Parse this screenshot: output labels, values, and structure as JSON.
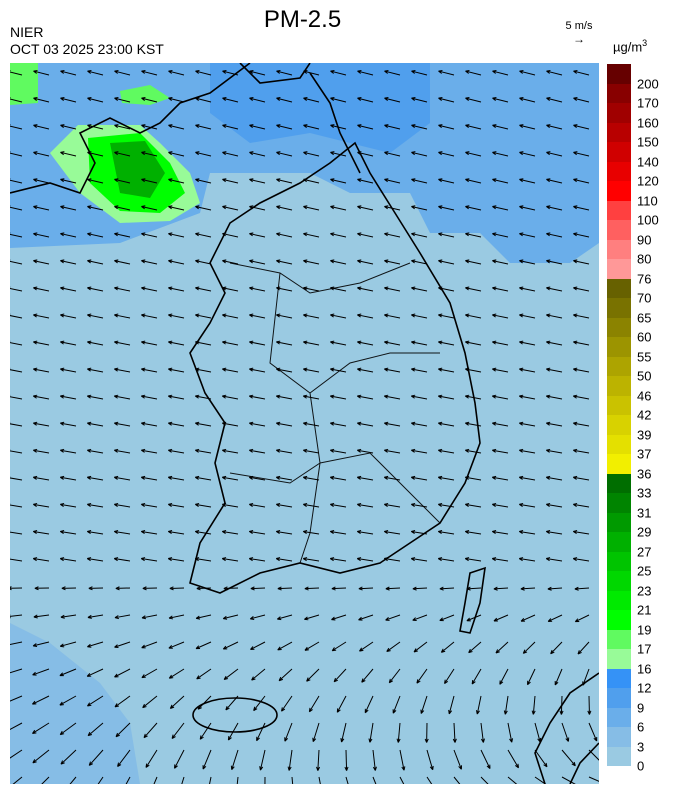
{
  "header": {
    "title": "PM-2.5",
    "organization": "NIER",
    "datetime": "OCT 03 2025 23:00 KST",
    "wind_scale_label": "5 m/s",
    "wind_scale_arrow": "→",
    "unit_base": "µg/m",
    "unit_exp": "3"
  },
  "colorbar": {
    "labels": [
      "0",
      "3",
      "6",
      "9",
      "12",
      "16",
      "17",
      "19",
      "21",
      "23",
      "25",
      "27",
      "29",
      "31",
      "33",
      "36",
      "37",
      "39",
      "42",
      "46",
      "50",
      "55",
      "60",
      "65",
      "70",
      "76",
      "80",
      "90",
      "100",
      "110",
      "120",
      "140",
      "150",
      "160",
      "170",
      "200"
    ],
    "colors": [
      "#9acae2",
      "#86bde6",
      "#6aaeea",
      "#509fed",
      "#3592f6",
      "#98fb98",
      "#60fa60",
      "#00ff00",
      "#00ea00",
      "#00d700",
      "#00c400",
      "#00b000",
      "#009a00",
      "#008400",
      "#006e00",
      "#f2ef00",
      "#e4e000",
      "#d8d200",
      "#cac200",
      "#bcb300",
      "#ada400",
      "#9c9400",
      "#8b8300",
      "#797200",
      "#676100",
      "#ff9898",
      "#ff7f7f",
      "#ff6060",
      "#ff4040",
      "#ff0000",
      "#e80000",
      "#d00000",
      "#b80000",
      "#a00000",
      "#880000",
      "#660000"
    ]
  },
  "map": {
    "background_color": "#9acae2",
    "region_colors": {
      "low_blue": "#86bde6",
      "mid_blue": "#6aaeea",
      "light_green": "#98fb98",
      "green": "#60fa60",
      "bright_green": "#00ff00",
      "dark_green": "#00b000"
    }
  }
}
